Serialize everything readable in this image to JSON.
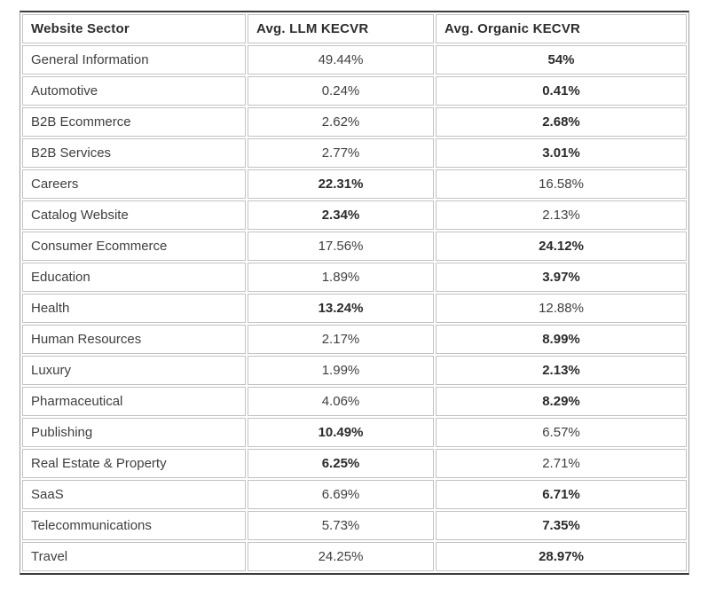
{
  "chart_data": {
    "type": "table",
    "title": "",
    "columns": [
      "Website Sector",
      "Avg. LLM KECVR",
      "Avg. Organic KECVR"
    ],
    "rows": [
      {
        "sector": "General Information",
        "llm": "49.44%",
        "organic": "54%",
        "bold_column": "organic"
      },
      {
        "sector": "Automotive",
        "llm": "0.24%",
        "organic": "0.41%",
        "bold_column": "organic"
      },
      {
        "sector": "B2B Ecommerce",
        "llm": "2.62%",
        "organic": "2.68%",
        "bold_column": "organic"
      },
      {
        "sector": "B2B Services",
        "llm": "2.77%",
        "organic": "3.01%",
        "bold_column": "organic"
      },
      {
        "sector": "Careers",
        "llm": "22.31%",
        "organic": "16.58%",
        "bold_column": "llm"
      },
      {
        "sector": "Catalog Website",
        "llm": "2.34%",
        "organic": "2.13%",
        "bold_column": "llm"
      },
      {
        "sector": "Consumer Ecommerce",
        "llm": "17.56%",
        "organic": "24.12%",
        "bold_column": "organic"
      },
      {
        "sector": "Education",
        "llm": "1.89%",
        "organic": "3.97%",
        "bold_column": "organic"
      },
      {
        "sector": "Health",
        "llm": "13.24%",
        "organic": "12.88%",
        "bold_column": "llm"
      },
      {
        "sector": "Human Resources",
        "llm": "2.17%",
        "organic": "8.99%",
        "bold_column": "organic"
      },
      {
        "sector": "Luxury",
        "llm": "1.99%",
        "organic": "2.13%",
        "bold_column": "organic"
      },
      {
        "sector": "Pharmaceutical",
        "llm": "4.06%",
        "organic": "8.29%",
        "bold_column": "organic"
      },
      {
        "sector": "Publishing",
        "llm": "10.49%",
        "organic": "6.57%",
        "bold_column": "llm"
      },
      {
        "sector": "Real Estate & Property",
        "llm": "6.25%",
        "organic": "2.71%",
        "bold_column": "llm"
      },
      {
        "sector": "SaaS",
        "llm": "6.69%",
        "organic": "6.71%",
        "bold_column": "organic"
      },
      {
        "sector": "Telecommunications",
        "llm": "5.73%",
        "organic": "7.35%",
        "bold_column": "organic"
      },
      {
        "sector": "Travel",
        "llm": "24.25%",
        "organic": "28.97%",
        "bold_column": "organic"
      }
    ]
  },
  "colors": {
    "text_regular": "#3f3f3f",
    "text_bold": "#2b2b2b",
    "cell_border": "#c2c2c2",
    "outer_border_dark": "#3b3b3b",
    "outer_border_side": "#9d9d9d",
    "background": "#ffffff"
  }
}
